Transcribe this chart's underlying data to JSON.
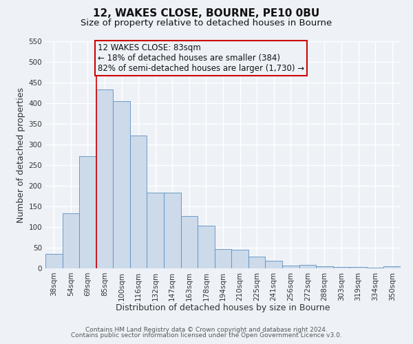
{
  "title": "12, WAKES CLOSE, BOURNE, PE10 0BU",
  "subtitle": "Size of property relative to detached houses in Bourne",
  "xlabel": "Distribution of detached houses by size in Bourne",
  "ylabel": "Number of detached properties",
  "bar_labels": [
    "38sqm",
    "54sqm",
    "69sqm",
    "85sqm",
    "100sqm",
    "116sqm",
    "132sqm",
    "147sqm",
    "163sqm",
    "178sqm",
    "194sqm",
    "210sqm",
    "225sqm",
    "241sqm",
    "256sqm",
    "272sqm",
    "288sqm",
    "303sqm",
    "319sqm",
    "334sqm",
    "350sqm"
  ],
  "bar_values": [
    35,
    133,
    272,
    433,
    405,
    322,
    183,
    183,
    127,
    104,
    46,
    45,
    29,
    18,
    7,
    8,
    5,
    4,
    3,
    2,
    5
  ],
  "bar_color": "#ccdaea",
  "bar_edge_color": "#5a8fc0",
  "vline_x": 2.5,
  "vline_color": "#cc0000",
  "ylim_max": 550,
  "yticks": [
    0,
    50,
    100,
    150,
    200,
    250,
    300,
    350,
    400,
    450,
    500,
    550
  ],
  "annotation_box_text": "12 WAKES CLOSE: 83sqm\n← 18% of detached houses are smaller (384)\n82% of semi-detached houses are larger (1,730) →",
  "annotation_box_edgecolor": "#cc0000",
  "footer_line1": "Contains HM Land Registry data © Crown copyright and database right 2024.",
  "footer_line2": "Contains public sector information licensed under the Open Government Licence v3.0.",
  "bg_color": "#eef2f7",
  "grid_color": "#ffffff",
  "title_fontsize": 11,
  "subtitle_fontsize": 9.5,
  "axis_label_fontsize": 9,
  "tick_fontsize": 7.5,
  "annotation_fontsize": 8.5,
  "footer_fontsize": 6.5
}
